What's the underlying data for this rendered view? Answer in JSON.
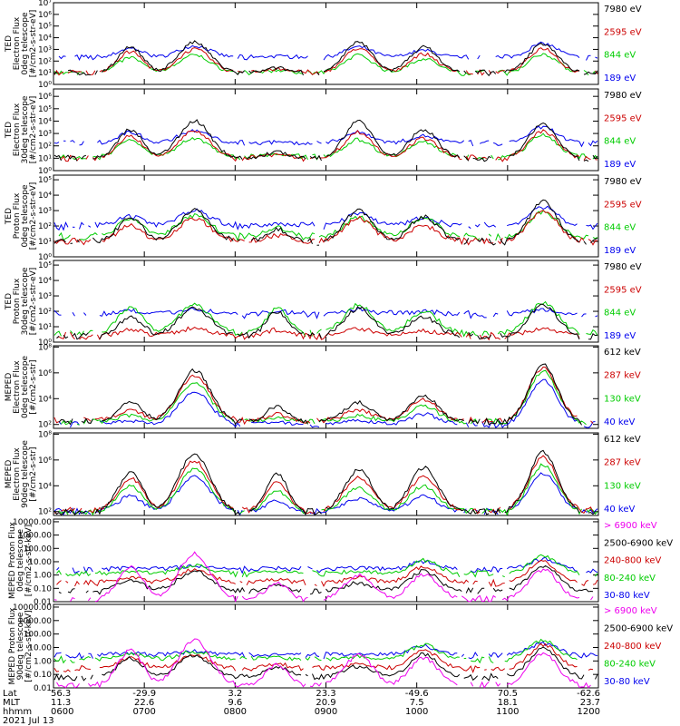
{
  "chart_data": [
    {
      "type": "line",
      "ylabel": [
        "TED",
        "Electron Flux",
        "0deg telescope",
        "[#/cm2-s-str-eV]"
      ],
      "yscale": "log",
      "y_ticks": [
        {
          "v": 0,
          "t": "10⁰"
        },
        {
          "v": 1,
          "t": "10¹"
        },
        {
          "v": 2,
          "t": "10²"
        },
        {
          "v": 3,
          "t": "10³"
        },
        {
          "v": 4,
          "t": "10⁴"
        },
        {
          "v": 5,
          "t": "10⁵"
        },
        {
          "v": 6,
          "t": "10⁶"
        },
        {
          "v": 7,
          "t": "10⁷"
        }
      ],
      "ylim": [
        0,
        7
      ],
      "legend": [
        {
          "label": "7980 eV",
          "color": "#000000"
        },
        {
          "label": "2595 eV",
          "color": "#cc0000"
        },
        {
          "label": "844 eV",
          "color": "#00cc00"
        },
        {
          "label": "189 eV",
          "color": "#0000ee"
        }
      ]
    },
    {
      "type": "line",
      "ylabel": [
        "TED",
        "Electron Flux",
        "30deg telescope",
        "[#/cm2-s-str-eV]"
      ],
      "yscale": "log",
      "y_ticks": [
        {
          "v": 0,
          "t": "10⁰"
        },
        {
          "v": 1,
          "t": "10¹"
        },
        {
          "v": 2,
          "t": "10²"
        },
        {
          "v": 3,
          "t": "10³"
        },
        {
          "v": 4,
          "t": "10⁴"
        },
        {
          "v": 5,
          "t": "10⁵"
        },
        {
          "v": 6,
          "t": "10⁶"
        }
      ],
      "ylim": [
        0,
        6.6
      ],
      "legend": [
        {
          "label": "7980 eV",
          "color": "#000000"
        },
        {
          "label": "2595 eV",
          "color": "#cc0000"
        },
        {
          "label": "844 eV",
          "color": "#00cc00"
        },
        {
          "label": "189 eV",
          "color": "#0000ee"
        }
      ]
    },
    {
      "type": "line",
      "ylabel": [
        "TED",
        "Proton Flux",
        "0deg telescope",
        "[#/cm2-s-str-eV]"
      ],
      "yscale": "log",
      "y_ticks": [
        {
          "v": 0,
          "t": "10⁰"
        },
        {
          "v": 1,
          "t": "10¹"
        },
        {
          "v": 2,
          "t": "10²"
        },
        {
          "v": 3,
          "t": "10³"
        },
        {
          "v": 4,
          "t": "10⁴"
        },
        {
          "v": 5,
          "t": "10⁵"
        }
      ],
      "ylim": [
        0,
        5.3
      ],
      "legend": [
        {
          "label": "7980 eV",
          "color": "#000000"
        },
        {
          "label": "2595 eV",
          "color": "#cc0000"
        },
        {
          "label": "844 eV",
          "color": "#00cc00"
        },
        {
          "label": "189 eV",
          "color": "#0000ee"
        }
      ]
    },
    {
      "type": "line",
      "ylabel": [
        "TED",
        "Proton Flux",
        "30deg telescope",
        "[#/cm2-s-str-eV]"
      ],
      "yscale": "log",
      "y_ticks": [
        {
          "v": 0,
          "t": "10⁰"
        },
        {
          "v": 1,
          "t": "10¹"
        },
        {
          "v": 2,
          "t": "10²"
        },
        {
          "v": 3,
          "t": "10³"
        },
        {
          "v": 4,
          "t": "10⁴"
        },
        {
          "v": 5,
          "t": "10⁵"
        }
      ],
      "ylim": [
        0,
        5.3
      ],
      "legend": [
        {
          "label": "7980 eV",
          "color": "#000000"
        },
        {
          "label": "2595 eV",
          "color": "#cc0000"
        },
        {
          "label": "844 eV",
          "color": "#00cc00"
        },
        {
          "label": "189 eV",
          "color": "#0000ee"
        }
      ]
    },
    {
      "type": "line",
      "ylabel": [
        "MEPED",
        "Electron Flux",
        "0deg telescope",
        "[#/cm2-s-str]"
      ],
      "yscale": "log",
      "y_ticks": [
        {
          "v": 2,
          "t": "10²"
        },
        {
          "v": 4,
          "t": "10⁴"
        },
        {
          "v": 6,
          "t": "10⁶"
        },
        {
          "v": 8,
          "t": "10⁸"
        }
      ],
      "ylim": [
        1.7,
        8.1
      ],
      "legend": [
        {
          "label": "612 keV",
          "color": "#000000"
        },
        {
          "label": "287 keV",
          "color": "#cc0000"
        },
        {
          "label": "130 keV",
          "color": "#00cc00"
        },
        {
          "label": "40 keV",
          "color": "#0000ee"
        }
      ]
    },
    {
      "type": "line",
      "ylabel": [
        "MEPED",
        "Electron Flux",
        "90deg telescope",
        "[#/cm2-s-str]"
      ],
      "yscale": "log",
      "y_ticks": [
        {
          "v": 2,
          "t": "10²"
        },
        {
          "v": 4,
          "t": "10⁴"
        },
        {
          "v": 6,
          "t": "10⁶"
        },
        {
          "v": 8,
          "t": "10⁸"
        }
      ],
      "ylim": [
        1.7,
        8.1
      ],
      "legend": [
        {
          "label": "612 keV",
          "color": "#000000"
        },
        {
          "label": "287 keV",
          "color": "#cc0000"
        },
        {
          "label": "130 keV",
          "color": "#00cc00"
        },
        {
          "label": "40 keV",
          "color": "#0000ee"
        }
      ]
    },
    {
      "type": "line",
      "ylabel": [
        "MEPED Proton Flux",
        "0deg telescope",
        "[#/cm2-s-str-keV]"
      ],
      "yscale": "log",
      "y_ticks": [
        {
          "v": -2,
          "t": "0.01"
        },
        {
          "v": -1,
          "t": "0.10"
        },
        {
          "v": 0,
          "t": "1.00"
        },
        {
          "v": 1,
          "t": "10.00"
        },
        {
          "v": 2,
          "t": "100.00"
        },
        {
          "v": 3,
          "t": "1000.00"
        },
        {
          "v": 4,
          "t": "10000.00"
        }
      ],
      "ylim": [
        -2,
        4.2
      ],
      "legend": [
        {
          "label": "> 6900 keV",
          "color": "#ee00ee"
        },
        {
          "label": "2500-6900 keV",
          "color": "#000000"
        },
        {
          "label": "240-800 keV",
          "color": "#cc0000"
        },
        {
          "label": "80-240 keV",
          "color": "#00cc00"
        },
        {
          "label": "30-80 keV",
          "color": "#0000ee"
        }
      ]
    },
    {
      "type": "line",
      "ylabel": [
        "MEPED Proton Flux",
        "90deg telescope",
        "[#/cm2-s-str-keV]"
      ],
      "yscale": "log",
      "y_ticks": [
        {
          "v": -2,
          "t": "0.01"
        },
        {
          "v": -1,
          "t": "0.10"
        },
        {
          "v": 0,
          "t": "1.00"
        },
        {
          "v": 1,
          "t": "10.00"
        },
        {
          "v": 2,
          "t": "100.00"
        },
        {
          "v": 3,
          "t": "1000.00"
        },
        {
          "v": 4,
          "t": "10000.00"
        }
      ],
      "ylim": [
        -2,
        4.2
      ],
      "legend": [
        {
          "label": "> 6900 keV",
          "color": "#ee00ee"
        },
        {
          "label": "2500-6900 keV",
          "color": "#000000"
        },
        {
          "label": "240-800 keV",
          "color": "#cc0000"
        },
        {
          "label": "80-240 keV",
          "color": "#00cc00"
        },
        {
          "label": "30-80 keV",
          "color": "#0000ee"
        }
      ]
    }
  ],
  "x_axis": {
    "row_labels": [
      "Lat",
      "MLT",
      "hhmm"
    ],
    "columns": [
      {
        "lat": "56.3",
        "mlt": "11.3",
        "hhmm": "0600"
      },
      {
        "lat": "-29.9",
        "mlt": "22.6",
        "hhmm": "0700"
      },
      {
        "lat": "3.2",
        "mlt": "9.6",
        "hhmm": "0800"
      },
      {
        "lat": "23.3",
        "mlt": "20.9",
        "hhmm": "0900"
      },
      {
        "lat": "-49.6",
        "mlt": "7.5",
        "hhmm": "1000"
      },
      {
        "lat": "70.5",
        "mlt": "18.1",
        "hhmm": "1100"
      },
      {
        "lat": "-62.6",
        "mlt": "23.7",
        "hhmm": "1200"
      }
    ],
    "date": "2021 Jul 13"
  }
}
